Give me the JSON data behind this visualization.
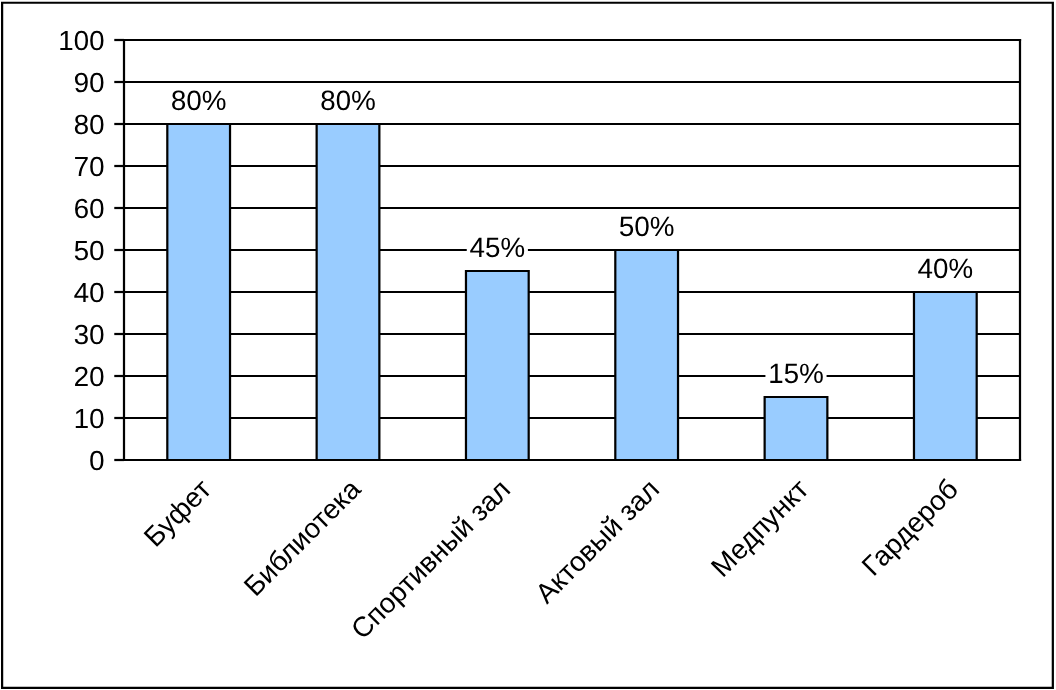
{
  "chart_data": {
    "type": "bar",
    "categories": [
      "Буфет",
      "Библиотека",
      "Спортивный зал",
      "Актовый зал",
      "Медпункт",
      "Гардероб"
    ],
    "values": [
      80,
      80,
      45,
      50,
      15,
      40
    ],
    "value_labels": [
      "80%",
      "80%",
      "45%",
      "50%",
      "15%",
      "40%"
    ],
    "color": "#99ccff",
    "ylim": [
      0,
      100
    ],
    "yticks": [
      0,
      10,
      20,
      30,
      40,
      50,
      60,
      70,
      80,
      90,
      100
    ],
    "grid": "y",
    "legend": false
  }
}
